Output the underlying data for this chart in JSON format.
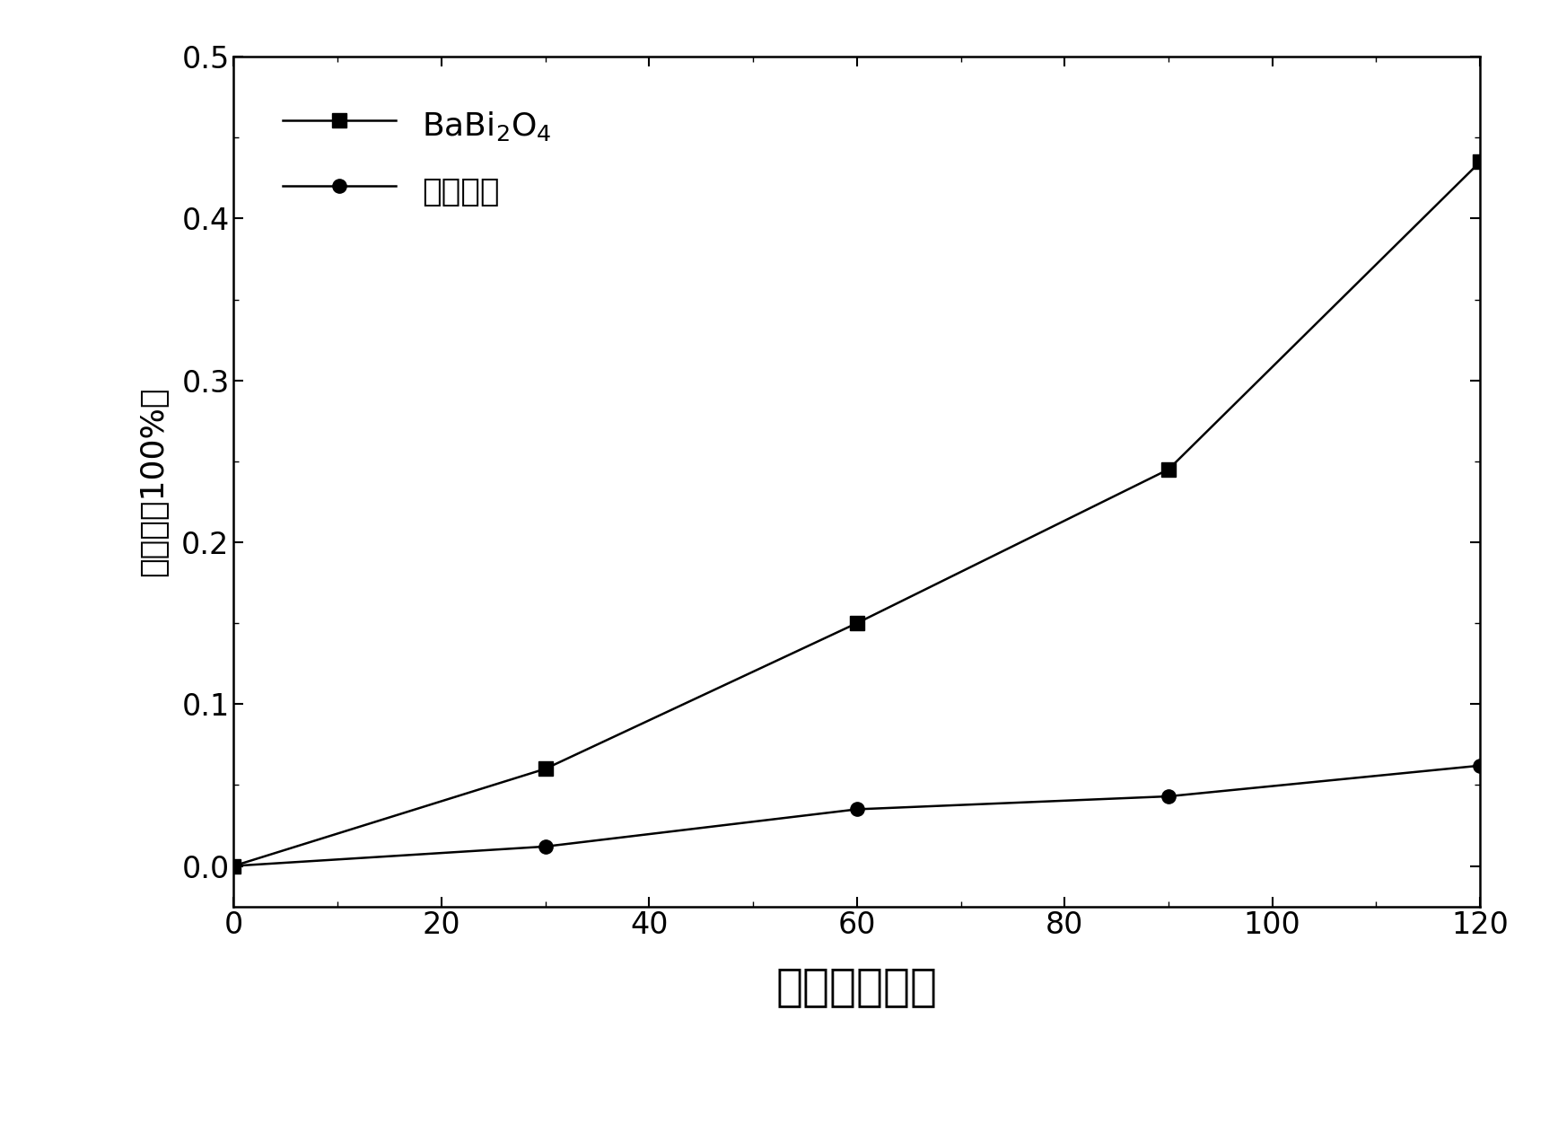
{
  "series1_label": "BaBi$_2$O$_4$",
  "series2_label": "空白样品",
  "series1_x": [
    0,
    30,
    60,
    90,
    120
  ],
  "series1_y": [
    0.0,
    0.06,
    0.15,
    0.245,
    0.435
  ],
  "series2_x": [
    0,
    30,
    60,
    90,
    120
  ],
  "series2_y": [
    0.0,
    0.012,
    0.035,
    0.043,
    0.062
  ],
  "xlabel": "时间（分钟）",
  "ylabel": "脱色率（100%）",
  "xlim": [
    0,
    120
  ],
  "ylim": [
    -0.025,
    0.5
  ],
  "xticks": [
    0,
    20,
    40,
    60,
    80,
    100,
    120
  ],
  "yticks": [
    0.0,
    0.1,
    0.2,
    0.3,
    0.4,
    0.5
  ],
  "line_color": "#000000",
  "marker1": "s",
  "marker2": "o",
  "markersize": 11,
  "linewidth": 1.8,
  "background_color": "#ffffff",
  "legend_fontsize": 26,
  "tick_fontsize": 24,
  "xlabel_fontsize": 36,
  "ylabel_fontsize": 26
}
